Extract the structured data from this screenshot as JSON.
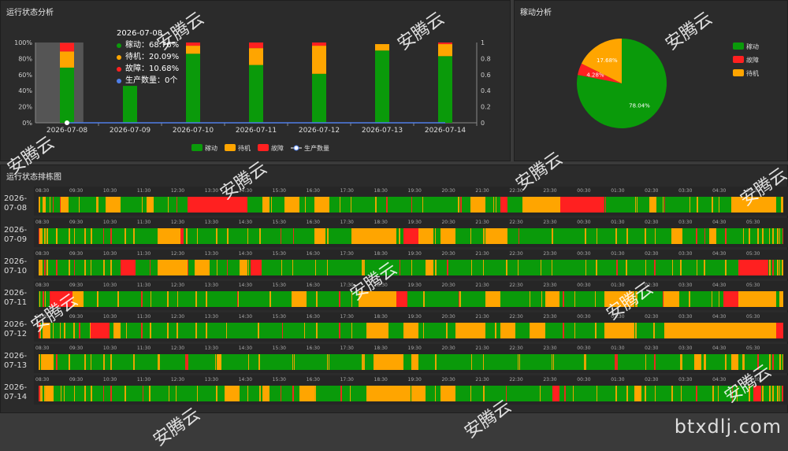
{
  "panels": {
    "status_analysis": "运行状态分析",
    "utilization_analysis": "稼动分析",
    "gantt": "运行状态排栋图"
  },
  "colors": {
    "run": "#0a9a0a",
    "idle": "#ffa500",
    "fault": "#ff2020",
    "output": "#4f7ee8"
  },
  "chart_data": [
    {
      "type": "bar",
      "title": "运行状态分析",
      "stacked": true,
      "categories": [
        "2026-07-08",
        "2026-07-09",
        "2026-07-10",
        "2026-07-11",
        "2026-07-12",
        "2026-07-13",
        "2026-07-14"
      ],
      "series": [
        {
          "name": "稼动",
          "color": "#0a9a0a",
          "values": [
            68.76,
            46,
            86,
            72,
            61,
            90,
            83
          ]
        },
        {
          "name": "待机",
          "color": "#ffa500",
          "values": [
            20.09,
            0,
            10,
            21,
            35,
            8,
            15
          ]
        },
        {
          "name": "故障",
          "color": "#ff2020",
          "values": [
            10.68,
            0,
            4,
            7,
            4,
            0,
            2
          ]
        },
        {
          "name": "生产数量",
          "color": "#4f7ee8",
          "values": [
            0,
            0,
            0,
            0,
            0,
            0,
            0
          ],
          "axis": "right",
          "kind": "line"
        }
      ],
      "yticks_left": [
        "0%",
        "20%",
        "40%",
        "60%",
        "80%",
        "100%"
      ],
      "yticks_right": [
        "0",
        "0.2",
        "0.4",
        "0.6",
        "0.8",
        "1"
      ],
      "ylim": [
        0,
        100
      ],
      "legend_position": "bottom"
    },
    {
      "type": "pie",
      "title": "稼动分析",
      "slices": [
        {
          "name": "稼动",
          "value": 78.04,
          "label": "78.04%",
          "color": "#0a9a0a"
        },
        {
          "name": "故障",
          "value": 4.28,
          "label": "4.28%",
          "color": "#ff2020"
        },
        {
          "name": "待机",
          "value": 17.68,
          "label": "17.68%",
          "color": "#ffa500"
        }
      ],
      "legend_position": "right"
    }
  ],
  "tooltip": {
    "date": "2026-07-08",
    "rows": [
      {
        "color": "#0a9a0a",
        "text": "稼动：68.76%"
      },
      {
        "color": "#ffa500",
        "text": "待机：20.09%"
      },
      {
        "color": "#ff2020",
        "text": "故障：10.68%"
      },
      {
        "color": "#4f7ee8",
        "text": "生产数量：0个"
      }
    ]
  },
  "gantt": {
    "hours": [
      "08:30",
      "09:30",
      "10:30",
      "11:30",
      "12:30",
      "13:30",
      "14:30",
      "15:30",
      "16:30",
      "17:30",
      "18:30",
      "19:30",
      "20:30",
      "21:30",
      "22:30",
      "23:30",
      "00:30",
      "01:30",
      "02:30",
      "03:30",
      "04:30",
      "05:30"
    ],
    "rows": [
      {
        "day": [
          "2026-",
          "07-08"
        ],
        "segments": [
          [
            0.005,
            0.01,
            "idle"
          ],
          [
            0.03,
            0.04,
            "idle"
          ],
          [
            0.09,
            0.11,
            "idle"
          ],
          [
            0.145,
            0.155,
            "idle"
          ],
          [
            0.2,
            0.28,
            "fault"
          ],
          [
            0.3,
            0.31,
            "idle"
          ],
          [
            0.33,
            0.35,
            "idle"
          ],
          [
            0.37,
            0.39,
            "idle"
          ],
          [
            0.58,
            0.6,
            "idle"
          ],
          [
            0.62,
            0.63,
            "fault"
          ],
          [
            0.65,
            0.7,
            "idle"
          ],
          [
            0.7,
            0.76,
            "fault"
          ],
          [
            0.82,
            0.83,
            "idle"
          ],
          [
            0.95,
            0.99,
            "idle"
          ],
          [
            0.93,
            0.96,
            "idle"
          ]
        ]
      },
      {
        "day": [
          "2026-",
          "07-09"
        ],
        "segments": [
          [
            0.16,
            0.19,
            "idle"
          ],
          [
            0.19,
            0.195,
            "fault"
          ],
          [
            0.37,
            0.385,
            "idle"
          ],
          [
            0.42,
            0.48,
            "idle"
          ],
          [
            0.49,
            0.51,
            "fault"
          ],
          [
            0.51,
            0.53,
            "idle"
          ],
          [
            0.54,
            0.56,
            "idle"
          ],
          [
            0.6,
            0.63,
            "idle"
          ],
          [
            0.85,
            0.865,
            "idle"
          ],
          [
            0.9,
            0.91,
            "idle"
          ]
        ]
      },
      {
        "day": [
          "2026-",
          "07-10"
        ],
        "segments": [
          [
            0.11,
            0.13,
            "fault"
          ],
          [
            0.16,
            0.2,
            "idle"
          ],
          [
            0.21,
            0.23,
            "idle"
          ],
          [
            0.27,
            0.28,
            "idle"
          ],
          [
            0.285,
            0.3,
            "fault"
          ],
          [
            0.52,
            0.53,
            "idle"
          ],
          [
            0.94,
            0.98,
            "fault"
          ]
        ]
      },
      {
        "day": [
          "2026-",
          "07-11"
        ],
        "segments": [
          [
            0.015,
            0.045,
            "fault"
          ],
          [
            0.045,
            0.06,
            "idle"
          ],
          [
            0.34,
            0.36,
            "idle"
          ],
          [
            0.43,
            0.48,
            "idle"
          ],
          [
            0.48,
            0.495,
            "fault"
          ],
          [
            0.6,
            0.62,
            "idle"
          ],
          [
            0.68,
            0.7,
            "idle"
          ],
          [
            0.76,
            0.8,
            "idle"
          ],
          [
            0.84,
            0.86,
            "idle"
          ],
          [
            0.92,
            0.94,
            "fault"
          ],
          [
            0.94,
            0.99,
            "idle"
          ],
          [
            0.995,
            1,
            "idle"
          ]
        ]
      },
      {
        "day": [
          "2026-",
          "07-12"
        ],
        "segments": [
          [
            0.005,
            0.015,
            "idle"
          ],
          [
            0.07,
            0.095,
            "fault"
          ],
          [
            0.1,
            0.11,
            "idle"
          ],
          [
            0.44,
            0.47,
            "idle"
          ],
          [
            0.49,
            0.51,
            "idle"
          ],
          [
            0.56,
            0.6,
            "idle"
          ],
          [
            0.62,
            0.64,
            "idle"
          ],
          [
            0.66,
            0.68,
            "idle"
          ],
          [
            0.76,
            0.8,
            "idle"
          ],
          [
            0.84,
            0.99,
            "idle"
          ],
          [
            0.99,
            1,
            "fault"
          ]
        ]
      },
      {
        "day": [
          "2026-",
          "07-13"
        ],
        "segments": [
          [
            0.005,
            0.02,
            "idle"
          ],
          [
            0.24,
            0.245,
            "idle"
          ],
          [
            0.45,
            0.49,
            "idle"
          ],
          [
            0.5,
            0.51,
            "idle"
          ],
          [
            0.88,
            0.89,
            "idle"
          ],
          [
            0.93,
            0.94,
            "idle"
          ]
        ]
      },
      {
        "day": [
          "2026-",
          "07-14"
        ],
        "segments": [
          [
            0.01,
            0.02,
            "idle"
          ],
          [
            0.25,
            0.27,
            "idle"
          ],
          [
            0.3,
            0.31,
            "idle"
          ],
          [
            0.35,
            0.37,
            "idle"
          ],
          [
            0.44,
            0.5,
            "idle"
          ],
          [
            0.5,
            0.52,
            "idle"
          ],
          [
            0.54,
            0.56,
            "idle"
          ],
          [
            0.69,
            0.7,
            "fault"
          ],
          [
            0.8,
            0.81,
            "idle"
          ],
          [
            0.96,
            0.97,
            "fault"
          ]
        ]
      }
    ]
  },
  "watermark": "安腾云",
  "site": "btxdlj.com"
}
